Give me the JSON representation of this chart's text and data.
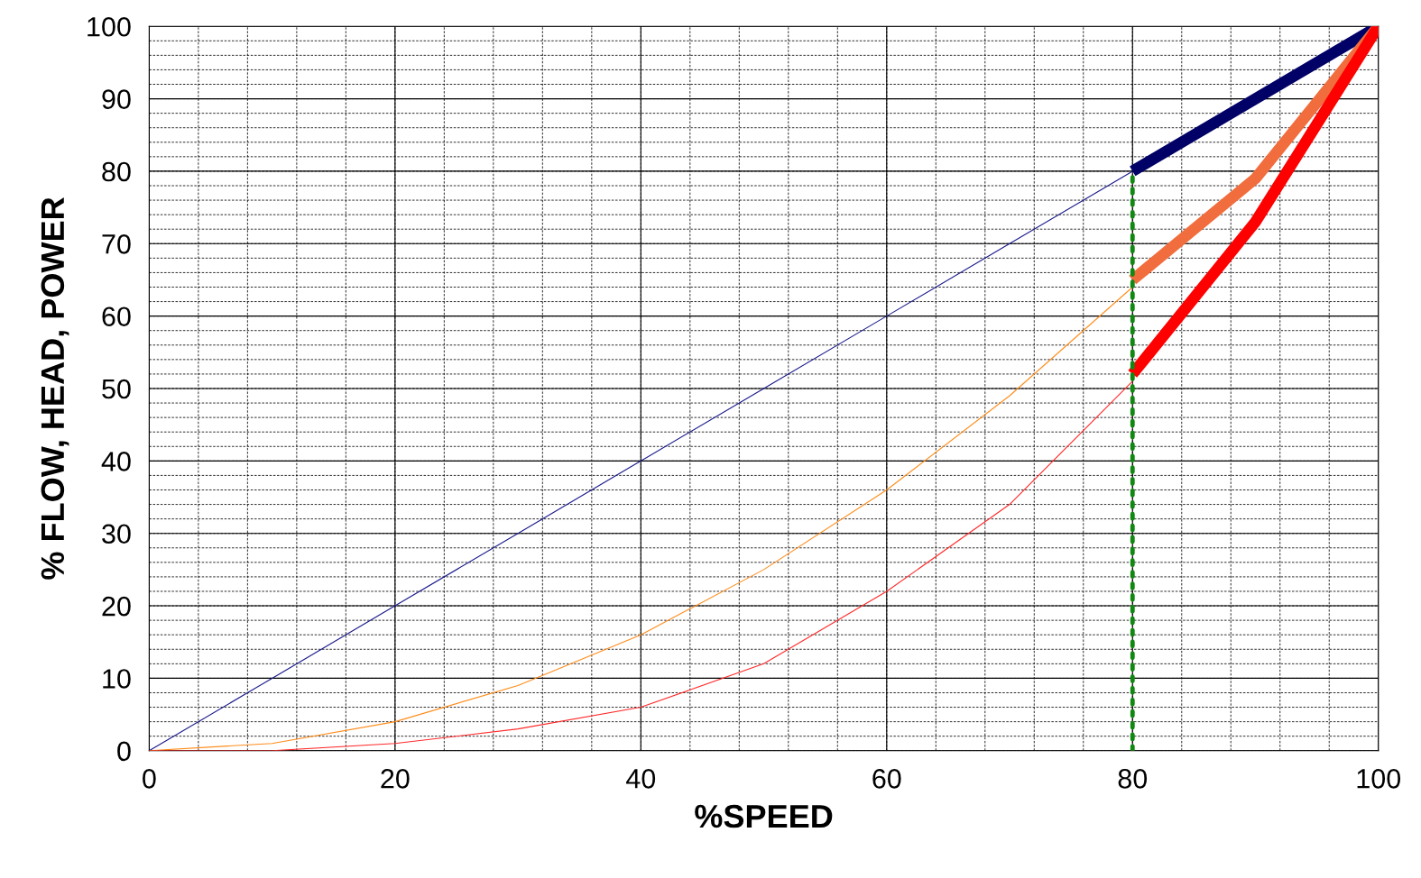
{
  "chart_data": {
    "type": "line",
    "xlabel": "%SPEED",
    "ylabel": "% FLOW, HEAD, POWER",
    "xlim": [
      0,
      100
    ],
    "ylim": [
      0,
      100
    ],
    "xticks": [
      0,
      20,
      40,
      60,
      80,
      100
    ],
    "yticks": [
      0,
      10,
      20,
      30,
      40,
      50,
      60,
      70,
      80,
      90,
      100
    ],
    "grid": true,
    "marker": "none",
    "line_style": "solid",
    "series": [
      {
        "color": "#1a1a8c",
        "x": [
          0,
          10,
          20,
          30,
          40,
          50,
          60,
          70,
          80
        ],
        "values": [
          0,
          10,
          20,
          30,
          40,
          50,
          60,
          70,
          80
        ]
      },
      {
        "color": "#ff8c1a",
        "x": [
          0,
          10,
          20,
          30,
          40,
          50,
          60,
          70,
          80
        ],
        "values": [
          0,
          1,
          4,
          9,
          16,
          25,
          36,
          49,
          64
        ]
      },
      {
        "color": "#ff2a2a",
        "x": [
          0,
          10,
          20,
          30,
          40,
          50,
          60,
          70,
          80
        ],
        "values": [
          0,
          0,
          1,
          3,
          6,
          12,
          22,
          34,
          51
        ]
      },
      {
        "color": "#000066",
        "x": [
          80,
          100
        ],
        "values": [
          80,
          100
        ]
      },
      {
        "color": "#f26d3d",
        "x": [
          80,
          90,
          100
        ],
        "values": [
          65,
          79,
          100
        ]
      },
      {
        "color": "#ff0000",
        "x": [
          80,
          90,
          100
        ],
        "values": [
          52,
          73,
          100
        ]
      },
      {
        "color": "#118811",
        "x": [
          80,
          80
        ],
        "values": [
          0,
          80
        ],
        "line_style": "dotted"
      }
    ]
  }
}
